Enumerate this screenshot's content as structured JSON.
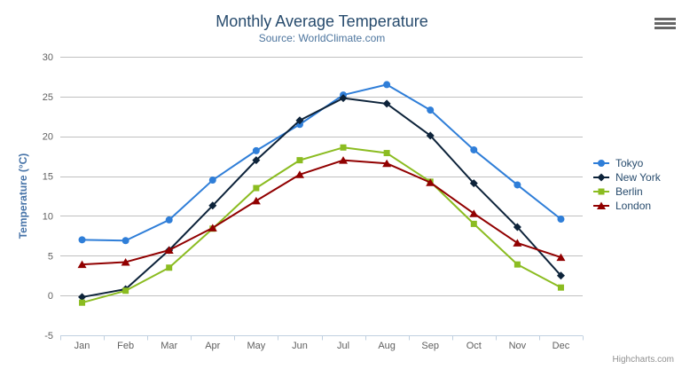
{
  "chart": {
    "title": "Monthly Average Temperature",
    "subtitle": "Source: WorldClimate.com",
    "credit": "Highcharts.com"
  },
  "colors": {
    "background": "#ffffff",
    "title": "#274b6d",
    "subtitle": "#4d759e",
    "axis_label": "#606060",
    "y_axis_title": "#4572a7",
    "grid_line": "#c0c0c0",
    "axis_line": "#c0d0e0",
    "legend_text": "#274b6d",
    "credit": "#909090",
    "hamburger": "#666666"
  },
  "icons": {
    "hamburger": "hamburger-icon"
  },
  "chart_data": {
    "type": "line",
    "title": "Monthly Average Temperature",
    "subtitle": "Source: WorldClimate.com",
    "categories": [
      "Jan",
      "Feb",
      "Mar",
      "Apr",
      "May",
      "Jun",
      "Jul",
      "Aug",
      "Sep",
      "Oct",
      "Nov",
      "Dec"
    ],
    "series": [
      {
        "name": "Tokyo",
        "color": "#2f7ed8",
        "marker": "circle",
        "values": [
          7.0,
          6.9,
          9.5,
          14.5,
          18.2,
          21.5,
          25.2,
          26.5,
          23.3,
          18.3,
          13.9,
          9.6
        ]
      },
      {
        "name": "New York",
        "color": "#0d233a",
        "marker": "diamond",
        "values": [
          -0.2,
          0.8,
          5.7,
          11.3,
          17.0,
          22.0,
          24.8,
          24.1,
          20.1,
          14.1,
          8.6,
          2.5
        ]
      },
      {
        "name": "Berlin",
        "color": "#8bbc21",
        "marker": "square",
        "values": [
          -0.9,
          0.6,
          3.5,
          8.4,
          13.5,
          17.0,
          18.6,
          17.9,
          14.3,
          9.0,
          3.9,
          1.0
        ]
      },
      {
        "name": "London",
        "color": "#910000",
        "marker": "triangle",
        "values": [
          3.9,
          4.2,
          5.7,
          8.5,
          11.9,
          15.2,
          17.0,
          16.6,
          14.2,
          10.3,
          6.6,
          4.8
        ]
      }
    ],
    "xlabel": "",
    "ylabel": "Temperature (°C)",
    "ylim": [
      -5,
      30
    ],
    "ytick_step": 5,
    "grid": true,
    "legend_position": "right"
  }
}
